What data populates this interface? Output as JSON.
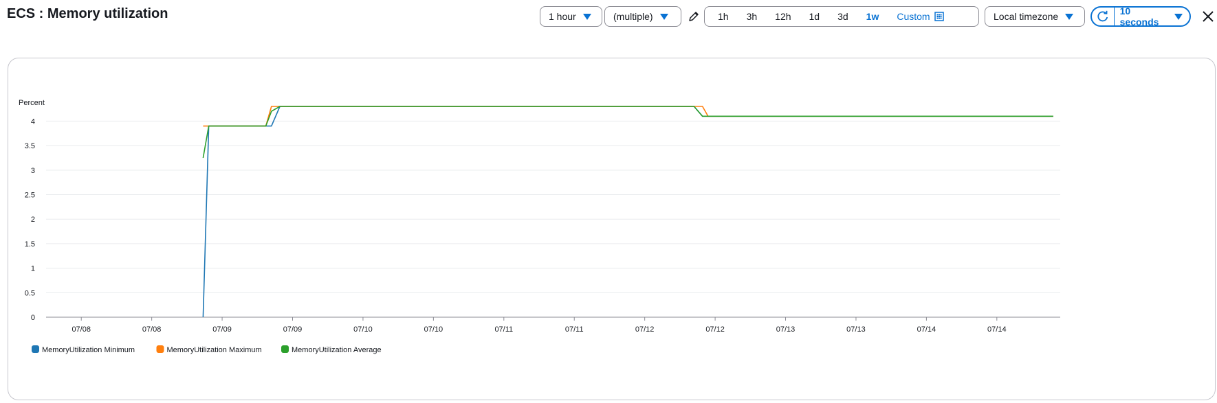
{
  "header": {
    "title": "ECS : Memory utilization"
  },
  "toolbar": {
    "period": "1 hour",
    "statistic": "(multiple)",
    "ranges": [
      "1h",
      "3h",
      "12h",
      "1d",
      "3d",
      "1w"
    ],
    "active_range": "1w",
    "custom_label": "Custom",
    "timezone": "Local timezone",
    "refresh_interval": "10 seconds"
  },
  "icons": {
    "period_caret": "caret-down-icon",
    "edit": "pencil-icon",
    "calendar": "calendar-icon",
    "refresh": "refresh-icon",
    "close": "close-icon"
  },
  "colors": {
    "accent": "#0972d3",
    "series_min": "#1f77b4",
    "series_max": "#ff7f0e",
    "series_avg": "#2ca02c"
  },
  "chart_data": {
    "type": "line",
    "ylabel": "Percent",
    "ylim": [
      0,
      4.3
    ],
    "yticks": [
      0,
      0.5,
      1,
      1.5,
      2,
      2.5,
      3,
      3.5,
      4
    ],
    "xticks": [
      "07/08",
      "07/08",
      "07/09",
      "07/09",
      "07/10",
      "07/10",
      "07/11",
      "07/11",
      "07/12",
      "07/12",
      "07/13",
      "07/13",
      "07/14",
      "07/14"
    ],
    "xtick_positions": [
      0.5,
      1.5,
      2.5,
      3.5,
      4.5,
      5.5,
      6.5,
      7.5,
      8.5,
      9.5,
      10.5,
      11.5,
      12.5,
      13.5
    ],
    "xlim": [
      0,
      14.4
    ],
    "grid": true,
    "legend_position": "bottom-left",
    "series": [
      {
        "name": "MemoryUtilization Minimum",
        "color": "#1f77b4",
        "x": [
          2.23,
          2.31,
          3.2,
          3.32,
          9.2,
          9.32,
          14.3
        ],
        "y": [
          0.0,
          3.9,
          3.9,
          4.3,
          4.3,
          4.1,
          4.1
        ]
      },
      {
        "name": "MemoryUtilization Maximum",
        "color": "#ff7f0e",
        "x": [
          2.23,
          3.12,
          3.2,
          9.32,
          9.4,
          14.3
        ],
        "y": [
          3.9,
          3.9,
          4.3,
          4.3,
          4.1,
          4.1
        ]
      },
      {
        "name": "MemoryUtilization Average",
        "color": "#2ca02c",
        "x": [
          2.23,
          2.31,
          3.12,
          3.2,
          3.32,
          9.2,
          9.32,
          14.3
        ],
        "y": [
          3.25,
          3.9,
          3.9,
          4.2,
          4.3,
          4.3,
          4.1,
          4.1
        ]
      }
    ]
  }
}
